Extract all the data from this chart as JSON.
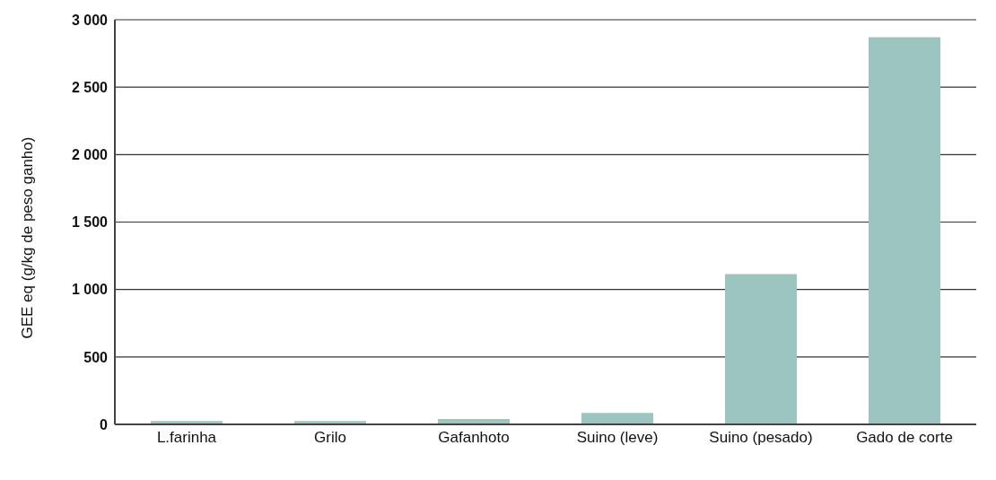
{
  "chart_data": {
    "type": "bar",
    "ylabel": "GEE eq (g/kg de peso ganho)",
    "categories": [
      "L.farinha",
      "Grilo",
      "Gafanhoto",
      "Suino (leve)",
      "Suino (pesado)",
      "Gado de corte"
    ],
    "values": [
      25,
      25,
      40,
      85,
      1115,
      2870
    ],
    "color": "#9cc5bf",
    "ylim": [
      0,
      3000
    ],
    "yticks": [
      {
        "value": 0,
        "label": "0"
      },
      {
        "value": 500,
        "label": "500"
      },
      {
        "value": 1000,
        "label": "1 000"
      },
      {
        "value": 1500,
        "label": "1 500"
      },
      {
        "value": 2000,
        "label": "2 000"
      },
      {
        "value": 2500,
        "label": "2 500"
      },
      {
        "value": 3000,
        "label": "3 000"
      }
    ],
    "grid": "y",
    "legend": false
  }
}
